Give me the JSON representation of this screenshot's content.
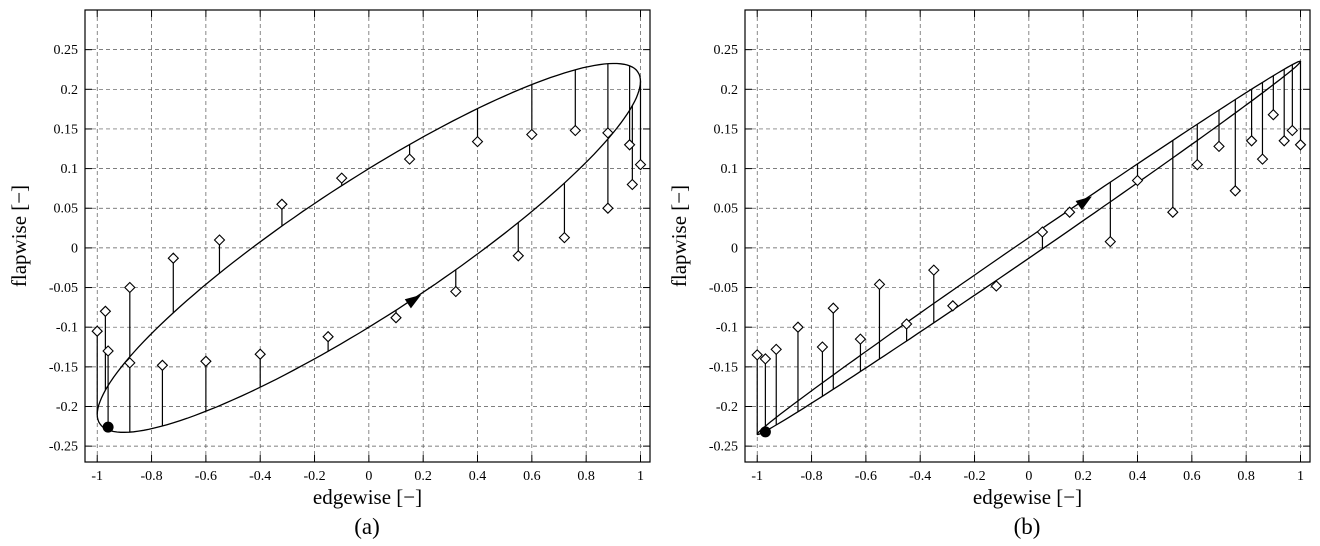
{
  "figure": {
    "background": "#ffffff",
    "ink_color": "#000000",
    "grid_color": "#555555",
    "marker_fill": "#ffffff"
  },
  "chart_data": [
    {
      "id": "a",
      "type": "line",
      "caption": "(a)",
      "xlabel": "edgewise [−]",
      "ylabel": "flapwise [−]",
      "xlim": [
        -1.045,
        1.035
      ],
      "ylim": [
        -0.27,
        0.3
      ],
      "grid": "dashed",
      "legend": "none",
      "xticks": [
        -1,
        -0.8,
        -0.6,
        -0.4,
        -0.2,
        0,
        0.2,
        0.4,
        0.6,
        0.8,
        1
      ],
      "xtick_labels": [
        "-1",
        "-0.8",
        "-0.6",
        "-0.4",
        "-0.2",
        "0",
        "0.2",
        "0.4",
        "0.6",
        "0.8",
        "1"
      ],
      "yticks": [
        0.25,
        0.2,
        0.15,
        0.1,
        0.05,
        0,
        -0.05,
        -0.1,
        -0.15,
        -0.2,
        -0.25
      ],
      "ytick_labels": [
        "0.25",
        "0.2",
        "0.15",
        "0.1",
        "0.05",
        "0",
        "-0.05",
        "-0.1",
        "-0.15",
        "-0.2",
        "-0.25"
      ],
      "orbit": {
        "shape": "ellipse",
        "x_amplitude": 1.0,
        "y_cos": 0.21,
        "y_sin": 0.1,
        "description": "x=cos(t), y=0.21cos(t)+0.10sin(t); wide counter-clockwise orbit"
      },
      "start_point": {
        "x": -0.96,
        "y": -0.226
      },
      "direction_arrow": {
        "x": 0.18,
        "y": -0.062,
        "slope": 0.23
      },
      "stems_note": "each stem = [x, y_on_curve, y_diamond]",
      "stems": [
        [
          -0.97,
          -0.179,
          -0.08
        ],
        [
          -0.88,
          -0.137,
          -0.05
        ],
        [
          -0.72,
          -0.082,
          -0.013
        ],
        [
          -0.55,
          -0.032,
          0.01
        ],
        [
          -0.32,
          0.028,
          0.055
        ],
        [
          -0.1,
          0.079,
          0.088
        ],
        [
          0.15,
          0.13,
          0.112
        ],
        [
          0.4,
          0.176,
          0.134
        ],
        [
          0.6,
          0.206,
          0.143
        ],
        [
          0.76,
          0.225,
          0.148
        ],
        [
          0.88,
          0.232,
          0.145
        ],
        [
          0.96,
          0.23,
          0.13
        ],
        [
          1.0,
          0.21,
          0.105
        ],
        [
          -1.0,
          -0.21,
          -0.105
        ],
        [
          -0.96,
          -0.23,
          -0.13
        ],
        [
          -0.88,
          -0.232,
          -0.145
        ],
        [
          -0.76,
          -0.225,
          -0.148
        ],
        [
          -0.6,
          -0.206,
          -0.143
        ],
        [
          -0.4,
          -0.176,
          -0.134
        ],
        [
          -0.15,
          -0.13,
          -0.112
        ],
        [
          0.1,
          -0.079,
          -0.088
        ],
        [
          0.32,
          -0.028,
          -0.055
        ],
        [
          0.55,
          0.032,
          -0.01
        ],
        [
          0.72,
          0.082,
          0.013
        ],
        [
          0.88,
          0.137,
          0.05
        ],
        [
          0.97,
          0.179,
          0.08
        ]
      ]
    },
    {
      "id": "b",
      "type": "line",
      "caption": "(b)",
      "xlabel": "edgewise [−]",
      "ylabel": "flapwise [−]",
      "xlim": [
        -1.045,
        1.035
      ],
      "ylim": [
        -0.27,
        0.3
      ],
      "grid": "dashed",
      "legend": "none",
      "xticks": [
        -1,
        -0.8,
        -0.6,
        -0.4,
        -0.2,
        0,
        0.2,
        0.4,
        0.6,
        0.8,
        1
      ],
      "xtick_labels": [
        "-1",
        "-0.8",
        "-0.6",
        "-0.4",
        "-0.2",
        "0",
        "0.2",
        "0.4",
        "0.6",
        "0.8",
        "1"
      ],
      "yticks": [
        0.25,
        0.2,
        0.15,
        0.1,
        0.05,
        0,
        -0.05,
        -0.1,
        -0.15,
        -0.2,
        -0.25
      ],
      "ytick_labels": [
        "0.25",
        "0.2",
        "0.15",
        "0.1",
        "0.05",
        "0",
        "-0.05",
        "-0.1",
        "-0.15",
        "-0.2",
        "-0.25"
      ],
      "orbit": {
        "shape": "ellipse",
        "x_amplitude": 1.0,
        "y_cos": 0.235,
        "y_sin": 0.013,
        "description": "x=cos(t), y=0.235cos(t)+0.013sin(t); very narrow, nearly straight-line orbit"
      },
      "start_point": {
        "x": -0.97,
        "y": -0.232
      },
      "direction_arrow": {
        "x": 0.22,
        "y": 0.062,
        "slope": 0.235
      },
      "stems_note": "each stem = [x, y_on_curve, y_diamond]",
      "stems": [
        [
          -1.0,
          -0.235,
          -0.135
        ],
        [
          -0.97,
          -0.231,
          -0.14
        ],
        [
          -0.93,
          -0.223,
          -0.128
        ],
        [
          -0.85,
          -0.207,
          -0.1
        ],
        [
          -0.76,
          -0.187,
          -0.125
        ],
        [
          -0.72,
          -0.178,
          -0.076
        ],
        [
          -0.62,
          -0.156,
          -0.115
        ],
        [
          -0.55,
          -0.14,
          -0.046
        ],
        [
          -0.45,
          -0.117,
          -0.096
        ],
        [
          -0.35,
          -0.094,
          -0.028
        ],
        [
          -0.28,
          -0.078,
          -0.073
        ],
        [
          -0.12,
          -0.041,
          -0.048
        ],
        [
          0.05,
          -0.001,
          0.02
        ],
        [
          0.15,
          0.048,
          0.045
        ],
        [
          0.3,
          0.083,
          0.008
        ],
        [
          0.4,
          0.106,
          0.085
        ],
        [
          0.53,
          0.136,
          0.045
        ],
        [
          0.62,
          0.156,
          0.105
        ],
        [
          0.7,
          0.174,
          0.128
        ],
        [
          0.76,
          0.187,
          0.072
        ],
        [
          0.82,
          0.2,
          0.135
        ],
        [
          0.86,
          0.209,
          0.112
        ],
        [
          0.9,
          0.217,
          0.168
        ],
        [
          0.94,
          0.225,
          0.135
        ],
        [
          0.97,
          0.231,
          0.148
        ],
        [
          1.0,
          0.235,
          0.13
        ]
      ]
    }
  ]
}
